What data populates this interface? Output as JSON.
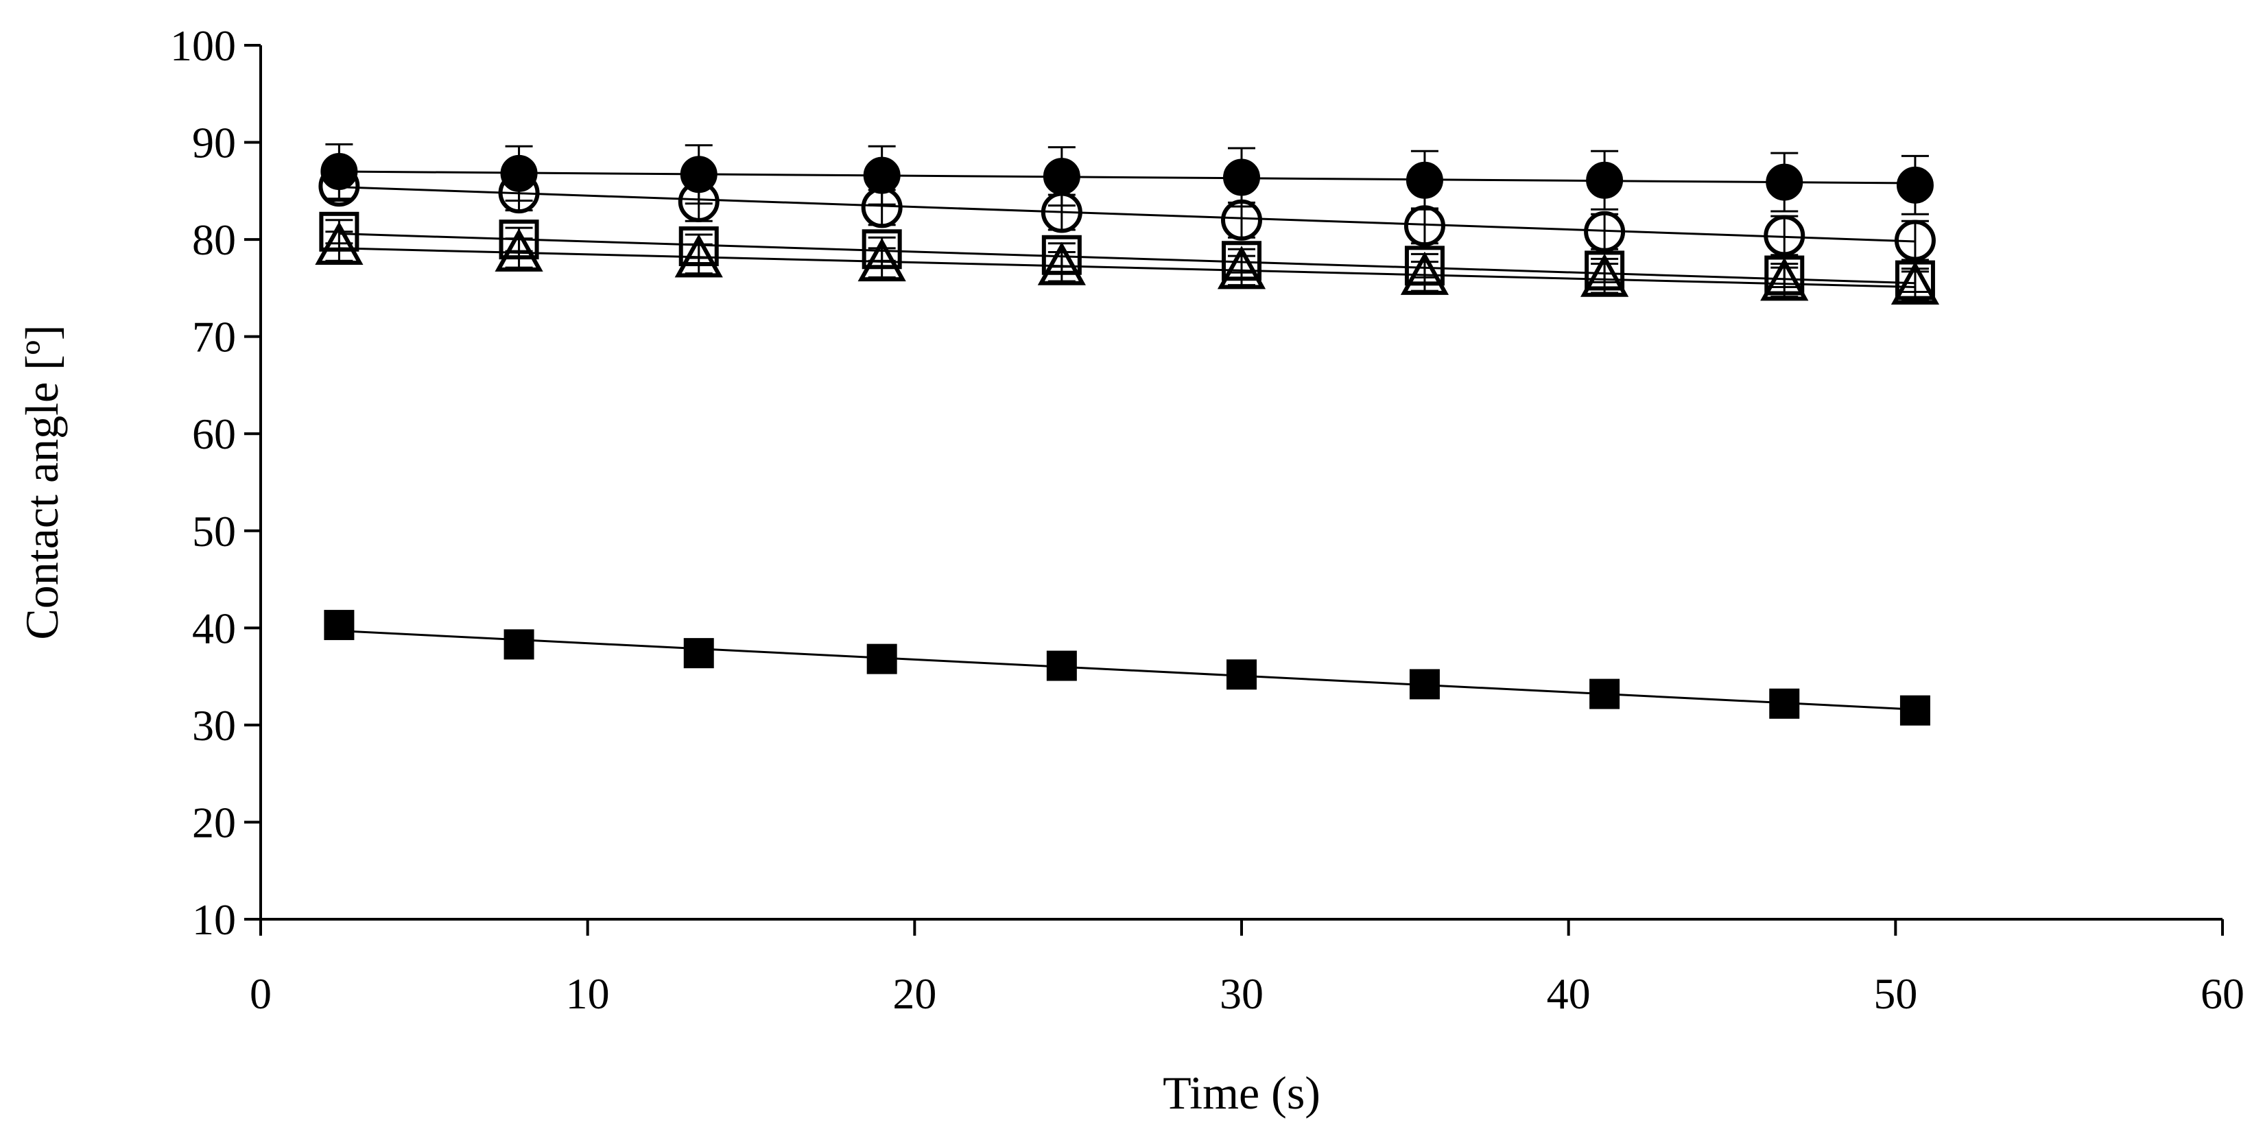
{
  "chart_data": {
    "type": "scatter",
    "title": "",
    "xlabel": "Time (s)",
    "ylabel": "Contact angle [º]",
    "xlim": [
      0,
      60
    ],
    "ylim": [
      10,
      100
    ],
    "xticks": [
      0,
      10,
      20,
      30,
      40,
      50,
      60
    ],
    "yticks": [
      10,
      20,
      30,
      40,
      50,
      60,
      70,
      80,
      90,
      100
    ],
    "grid": false,
    "legend": "none",
    "x": [
      2.4,
      7.9,
      13.4,
      19.0,
      24.5,
      30.0,
      35.6,
      41.1,
      46.6,
      50.6
    ],
    "series": [
      {
        "marker": "filled-circle",
        "values": [
          87.0,
          86.8,
          86.7,
          86.6,
          86.5,
          86.4,
          86.1,
          86.1,
          85.9,
          85.6
        ],
        "errors": [
          2.8,
          2.8,
          3.0,
          3.0,
          3.0,
          3.0,
          3.0,
          3.0,
          3.0,
          3.0
        ],
        "trend": [
          87.0,
          85.8
        ]
      },
      {
        "marker": "open-circle",
        "values": [
          85.5,
          84.8,
          83.9,
          83.3,
          82.8,
          82.0,
          81.4,
          80.8,
          80.4,
          79.9
        ],
        "errors": [
          1.5,
          1.8,
          2.0,
          1.8,
          1.8,
          1.8,
          1.8,
          1.8,
          2.0,
          2.0
        ],
        "trend": [
          85.4,
          79.8
        ]
      },
      {
        "marker": "open-square",
        "values": [
          80.8,
          80.0,
          79.3,
          79.0,
          78.4,
          77.8,
          77.3,
          76.8,
          76.3,
          75.8
        ],
        "errors": [
          1.2,
          1.2,
          1.2,
          1.2,
          1.2,
          1.2,
          1.2,
          1.2,
          1.2,
          1.2
        ],
        "trend": [
          80.6,
          75.5
        ]
      },
      {
        "marker": "open-triangle",
        "values": [
          79.3,
          78.6,
          78.0,
          77.6,
          77.2,
          76.8,
          76.2,
          76.0,
          75.6,
          75.2
        ],
        "errors": [
          1.5,
          1.5,
          1.5,
          1.5,
          1.5,
          1.5,
          1.5,
          1.5,
          1.5,
          1.5
        ],
        "trend": [
          79.1,
          75.1
        ]
      },
      {
        "marker": "filled-square",
        "values": [
          40.3,
          38.3,
          37.4,
          36.8,
          36.1,
          35.2,
          34.2,
          33.2,
          32.2,
          31.5
        ],
        "errors": [
          0.8,
          1.0,
          1.3,
          1.3,
          1.3,
          1.3,
          1.3,
          1.3,
          1.3,
          1.3
        ],
        "trend": [
          39.7,
          31.6
        ]
      }
    ]
  }
}
